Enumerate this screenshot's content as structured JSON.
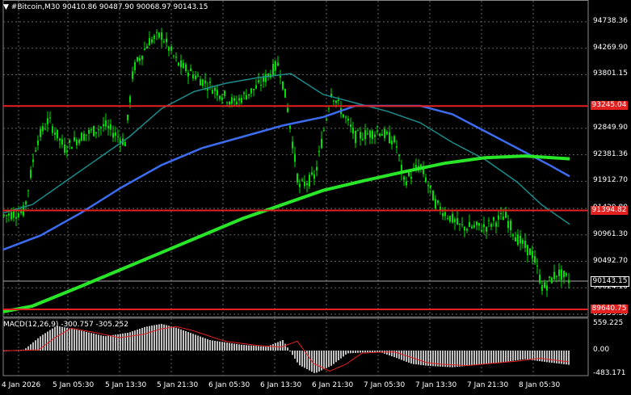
{
  "window": {
    "symbol_line": "▼ #Bitcoin,M30  90410.86 90487.90 90068.97 90143.15"
  },
  "price_axis": {
    "labels": [
      "94738.36",
      "94269.90",
      "93801.15",
      "92849.90",
      "92381.36",
      "91912.70",
      "91429.80",
      "90961.30",
      "90492.70",
      "90024.10",
      "89555.50"
    ],
    "current_price": "90143.15",
    "current_price_bg": "#ffffff",
    "hlines": [
      {
        "price": "93245.04",
        "color": "#e52020"
      },
      {
        "price": "91394.82",
        "color": "#e52020"
      },
      {
        "price": "89640.75",
        "color": "#e52020"
      }
    ]
  },
  "macd": {
    "label": "MACD(12,26,9) -300.757 -305.252",
    "axis_labels": [
      "559.225",
      "0.00",
      "-483.171"
    ],
    "hist_color": "#c0c0c0",
    "signal_color": "#e52020"
  },
  "time_axis": {
    "labels": [
      "4 Jan 2026",
      "5 Jan 05:30",
      "5 Jan 13:30",
      "5 Jan 21:30",
      "6 Jan 05:30",
      "6 Jan 13:30",
      "6 Jan 21:30",
      "7 Jan 05:30",
      "7 Jan 13:30",
      "7 Jan 21:30",
      "8 Jan 05:30"
    ]
  },
  "colors": {
    "background": "#000000",
    "candles": "#00e000",
    "grid": "#646464",
    "ma_fast": "#1a8c8c",
    "ma_mid": "#3c6cf0",
    "ma_slow": "#28e628"
  }
}
